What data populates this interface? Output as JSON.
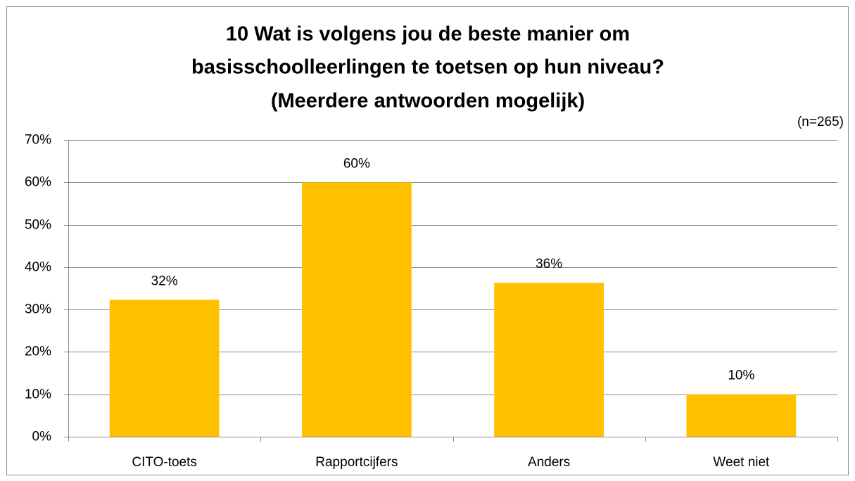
{
  "chart_data": {
    "type": "bar",
    "title": [
      "10 Wat is volgens jou de beste manier om",
      "basisschoolleerlingen te toetsen op hun niveau?",
      "(Meerdere antwoorden mogelijk)"
    ],
    "annotation": "(n=265)",
    "categories": [
      "CITO-toets",
      "Rapportcijfers",
      "Anders",
      "Weet niet"
    ],
    "values": [
      32.3,
      60,
      36.3,
      10
    ],
    "value_labels": [
      "32%",
      "60%",
      "36%",
      "10%"
    ],
    "color": "#ffc000",
    "ylim": [
      0,
      70
    ],
    "yticks": [
      {
        "value": 0,
        "label": "0%"
      },
      {
        "value": 10,
        "label": "10%"
      },
      {
        "value": 20,
        "label": "20%"
      },
      {
        "value": 30,
        "label": "30%"
      },
      {
        "value": 40,
        "label": "40%"
      },
      {
        "value": 50,
        "label": "50%"
      },
      {
        "value": 60,
        "label": "60%"
      },
      {
        "value": 70,
        "label": "70%"
      }
    ],
    "grid": true
  }
}
